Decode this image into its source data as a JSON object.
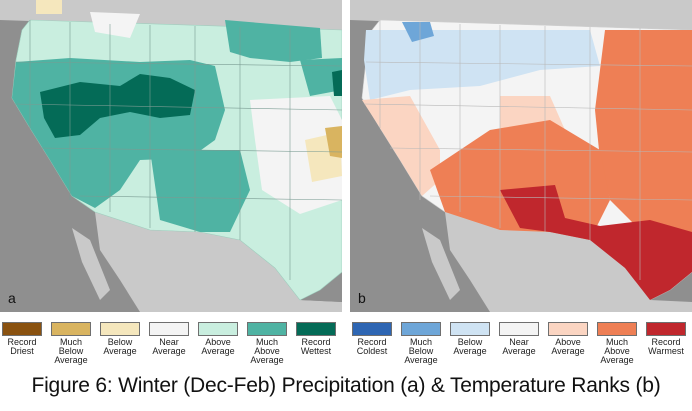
{
  "figure": {
    "caption": "Figure 6: Winter (Dec-Feb) Precipitation (a) & Temperature Ranks (b)"
  },
  "panel_a": {
    "letter": "a",
    "legend": [
      {
        "label": "Record\nDriest",
        "color": "#8a5210"
      },
      {
        "label": "Much\nBelow\nAverage",
        "color": "#d9b460"
      },
      {
        "label": "Below\nAverage",
        "color": "#f5e7bd"
      },
      {
        "label": "Near\nAverage",
        "color": "#f4f4f4"
      },
      {
        "label": "Above\nAverage",
        "color": "#c9eedf"
      },
      {
        "label": "Much\nAbove\nAverage",
        "color": "#4fb3a3"
      },
      {
        "label": "Record\nWettest",
        "color": "#046b57"
      }
    ]
  },
  "panel_b": {
    "letter": "b",
    "legend": [
      {
        "label": "Record\nColdest",
        "color": "#2e66b3"
      },
      {
        "label": "Much\nBelow\nAverage",
        "color": "#6ea6d8"
      },
      {
        "label": "Below\nAverage",
        "color": "#cfe3f3"
      },
      {
        "label": "Near\nAverage",
        "color": "#f4f4f4"
      },
      {
        "label": "Above\nAverage",
        "color": "#fbd5c2"
      },
      {
        "label": "Much\nAbove\nAverage",
        "color": "#ee7f55"
      },
      {
        "label": "Record\nWarmest",
        "color": "#c0272d"
      }
    ]
  }
}
